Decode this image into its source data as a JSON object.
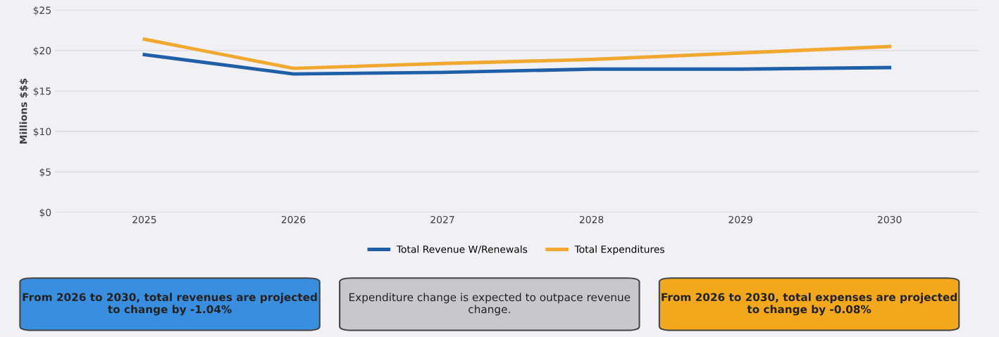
{
  "chart_data": {
    "type": "line",
    "ylabel": "Millions $$$",
    "categories": [
      "2025",
      "2026",
      "2027",
      "2028",
      "2029",
      "2030"
    ],
    "series": [
      {
        "name": "Total Revenue W/Renewals",
        "color": "#1f5fa8",
        "values": [
          19.5,
          17.1,
          17.3,
          17.7,
          17.7,
          17.9
        ]
      },
      {
        "name": "Total Expenditures",
        "color": "#f0a830",
        "values": [
          21.4,
          17.8,
          18.4,
          18.9,
          19.7,
          20.5
        ]
      }
    ],
    "ylim": [
      0,
      25
    ],
    "yticks": [
      {
        "value": 0,
        "label": "$0"
      },
      {
        "value": 5,
        "label": "$5"
      },
      {
        "value": 10,
        "label": "$10"
      },
      {
        "value": 15,
        "label": "$15"
      },
      {
        "value": 20,
        "label": "$20"
      },
      {
        "value": 25,
        "label": "$25"
      }
    ],
    "grid": "y",
    "legend": "bottom",
    "marker": "none",
    "line_style": "solid",
    "annotations": [
      "From 2026 to 2030, total revenues are projected to change by -1.04%",
      "Expenditure change is expected to outpace revenue change.",
      "From 2026 to 2030, total expenses are projected to change by -0.08%"
    ]
  }
}
